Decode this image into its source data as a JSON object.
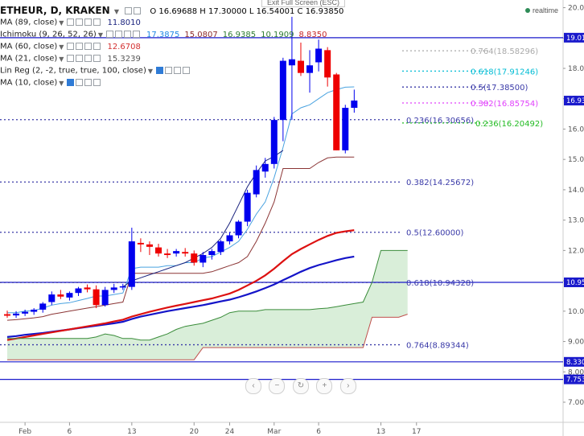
{
  "header": {
    "title": "ETHEUR, D, KRAKEN",
    "ohlc": "O 16.69688 H 17.30000 L 16.54001 C 16.93850",
    "exit_fullscreen": "Exit Full Screen (ESC)",
    "realtime": "realtime"
  },
  "indicators": [
    {
      "name": "MA (89, close)",
      "values": [
        {
          "v": "11.8010",
          "color": "#1a237e"
        }
      ]
    },
    {
      "name": "Ichimoku (9, 26, 52, 26)",
      "values": [
        {
          "v": "17.3875",
          "color": "#1e88e5"
        },
        {
          "v": "15.0807",
          "color": "#8d2a2a"
        },
        {
          "v": "16.9385",
          "color": "#2e7d32"
        },
        {
          "v": "10.1909",
          "color": "#2e7d32"
        },
        {
          "v": "8.8350",
          "color": "#c62828"
        }
      ]
    },
    {
      "name": "MA (60, close)",
      "values": [
        {
          "v": "12.6708",
          "color": "#d32f2f"
        }
      ]
    },
    {
      "name": "MA (21, close)",
      "values": [
        {
          "v": "15.3239",
          "color": "#555555"
        }
      ]
    },
    {
      "name": "Lin Reg (2, -2, true, true, 100, close)",
      "values": []
    },
    {
      "name": "MA (10, close)",
      "values": []
    }
  ],
  "colors": {
    "up": "#0000ee",
    "down": "#ee0000",
    "fib_line": "#3a3aa8",
    "cloud": "#d9eed9",
    "ma89": "#1414c8",
    "ma60": "#dd1111",
    "tenkan": "#4aa3e0",
    "kijun": "#8b3535",
    "chikou": "#1a237e",
    "lead_a": "#3a8c3a",
    "lead_b": "#c0504d"
  },
  "chart_data": {
    "type": "candlestick",
    "ylim": [
      7.0,
      20.2
    ],
    "x_ticks": [
      {
        "label": "Feb",
        "i": 2
      },
      {
        "label": "6",
        "i": 7
      },
      {
        "label": "13",
        "i": 14
      },
      {
        "label": "20",
        "i": 21
      },
      {
        "label": "24",
        "i": 25
      },
      {
        "label": "Mar",
        "i": 30
      },
      {
        "label": "6",
        "i": 35
      },
      {
        "label": "13",
        "i": 42
      },
      {
        "label": "17",
        "i": 46
      }
    ],
    "y_ticks": [
      "20.000",
      "19.000",
      "18.000",
      "17.000",
      "16.000",
      "15.000",
      "14.000",
      "13.000",
      "12.000",
      "11.000",
      "10.000",
      "9.000",
      "8.000",
      "7.000"
    ],
    "price_labels": [
      "19.011",
      "16.938",
      "10.950",
      "8.330",
      "7.753"
    ],
    "candles": [
      {
        "o": 9.9,
        "h": 10.02,
        "l": 9.78,
        "c": 9.85
      },
      {
        "o": 9.86,
        "h": 10.0,
        "l": 9.78,
        "c": 9.92
      },
      {
        "o": 9.92,
        "h": 10.05,
        "l": 9.84,
        "c": 9.98
      },
      {
        "o": 9.98,
        "h": 10.1,
        "l": 9.88,
        "c": 10.05
      },
      {
        "o": 10.05,
        "h": 10.3,
        "l": 9.95,
        "c": 10.25
      },
      {
        "o": 10.3,
        "h": 10.65,
        "l": 10.2,
        "c": 10.55
      },
      {
        "o": 10.55,
        "h": 10.7,
        "l": 10.4,
        "c": 10.48
      },
      {
        "o": 10.45,
        "h": 10.65,
        "l": 10.35,
        "c": 10.6
      },
      {
        "o": 10.6,
        "h": 10.8,
        "l": 10.5,
        "c": 10.75
      },
      {
        "o": 10.78,
        "h": 10.88,
        "l": 10.62,
        "c": 10.72
      },
      {
        "o": 10.72,
        "h": 10.85,
        "l": 10.1,
        "c": 10.2
      },
      {
        "o": 10.2,
        "h": 10.8,
        "l": 10.15,
        "c": 10.7
      },
      {
        "o": 10.7,
        "h": 10.9,
        "l": 10.6,
        "c": 10.78
      },
      {
        "o": 10.78,
        "h": 10.9,
        "l": 10.7,
        "c": 10.82
      },
      {
        "o": 10.8,
        "h": 12.75,
        "l": 10.7,
        "c": 12.3
      },
      {
        "o": 12.25,
        "h": 12.4,
        "l": 11.95,
        "c": 12.2
      },
      {
        "o": 12.2,
        "h": 12.3,
        "l": 11.85,
        "c": 12.12
      },
      {
        "o": 12.1,
        "h": 12.22,
        "l": 11.8,
        "c": 11.9
      },
      {
        "o": 11.9,
        "h": 12.05,
        "l": 11.75,
        "c": 11.85
      },
      {
        "o": 11.9,
        "h": 12.05,
        "l": 11.8,
        "c": 11.98
      },
      {
        "o": 11.95,
        "h": 12.08,
        "l": 11.8,
        "c": 11.9
      },
      {
        "o": 11.9,
        "h": 12.0,
        "l": 11.5,
        "c": 11.6
      },
      {
        "o": 11.6,
        "h": 11.95,
        "l": 11.45,
        "c": 11.85
      },
      {
        "o": 11.85,
        "h": 12.05,
        "l": 11.7,
        "c": 11.98
      },
      {
        "o": 11.95,
        "h": 12.35,
        "l": 11.85,
        "c": 12.3
      },
      {
        "o": 12.3,
        "h": 12.6,
        "l": 12.2,
        "c": 12.5
      },
      {
        "o": 12.5,
        "h": 13.0,
        "l": 12.4,
        "c": 12.95
      },
      {
        "o": 12.95,
        "h": 14.0,
        "l": 12.8,
        "c": 13.9
      },
      {
        "o": 13.85,
        "h": 14.8,
        "l": 13.75,
        "c": 14.65
      },
      {
        "o": 14.6,
        "h": 15.05,
        "l": 14.4,
        "c": 14.85
      },
      {
        "o": 14.85,
        "h": 16.4,
        "l": 14.7,
        "c": 16.3
      },
      {
        "o": 16.3,
        "h": 18.35,
        "l": 15.6,
        "c": 18.25
      },
      {
        "o": 18.1,
        "h": 19.7,
        "l": 16.3,
        "c": 18.3
      },
      {
        "o": 18.25,
        "h": 18.85,
        "l": 17.75,
        "c": 17.85
      },
      {
        "o": 17.85,
        "h": 18.6,
        "l": 17.2,
        "c": 18.1
      },
      {
        "o": 18.2,
        "h": 18.95,
        "l": 17.9,
        "c": 18.65
      },
      {
        "o": 18.6,
        "h": 18.7,
        "l": 17.4,
        "c": 17.7
      },
      {
        "o": 17.8,
        "h": 17.85,
        "l": 15.3,
        "c": 15.3
      },
      {
        "o": 15.3,
        "h": 16.8,
        "l": 15.2,
        "c": 16.7
      },
      {
        "o": 16.7,
        "h": 17.3,
        "l": 16.54,
        "c": 16.94
      }
    ],
    "series": [
      {
        "key": "ma89",
        "values": [
          9.15,
          9.18,
          9.22,
          9.25,
          9.28,
          9.32,
          9.36,
          9.4,
          9.44,
          9.48,
          9.52,
          9.56,
          9.6,
          9.65,
          9.74,
          9.82,
          9.88,
          9.94,
          10.0,
          10.05,
          10.1,
          10.15,
          10.2,
          10.26,
          10.32,
          10.38,
          10.46,
          10.55,
          10.65,
          10.76,
          10.88,
          11.02,
          11.16,
          11.3,
          11.42,
          11.52,
          11.6,
          11.68,
          11.75,
          11.8
        ]
      },
      {
        "key": "ma60",
        "values": [
          9.05,
          9.1,
          9.15,
          9.2,
          9.25,
          9.3,
          9.35,
          9.4,
          9.45,
          9.5,
          9.55,
          9.6,
          9.66,
          9.72,
          9.82,
          9.9,
          9.98,
          10.05,
          10.12,
          10.18,
          10.24,
          10.3,
          10.36,
          10.42,
          10.5,
          10.58,
          10.7,
          10.85,
          11.0,
          11.18,
          11.4,
          11.65,
          11.88,
          12.05,
          12.2,
          12.35,
          12.48,
          12.58,
          12.63,
          12.67
        ]
      },
      {
        "key": "tenkan",
        "values": [
          9.95,
          9.95,
          10.0,
          10.02,
          10.1,
          10.2,
          10.25,
          10.28,
          10.35,
          10.42,
          10.5,
          10.5,
          10.55,
          10.6,
          11.4,
          11.45,
          11.45,
          11.45,
          11.5,
          11.5,
          11.6,
          11.6,
          11.75,
          11.8,
          11.95,
          12.1,
          12.3,
          12.7,
          13.2,
          13.6,
          14.4,
          15.4,
          16.5,
          16.7,
          16.8,
          17.0,
          17.2,
          17.3,
          17.38,
          17.39
        ]
      },
      {
        "key": "kijun",
        "values": [
          9.7,
          9.72,
          9.75,
          9.78,
          9.82,
          9.9,
          9.95,
          10.0,
          10.05,
          10.1,
          10.15,
          10.2,
          10.25,
          10.3,
          11.25,
          11.25,
          11.25,
          11.25,
          11.25,
          11.25,
          11.25,
          11.25,
          11.25,
          11.3,
          11.4,
          11.5,
          11.6,
          11.8,
          12.3,
          12.9,
          13.6,
          14.7,
          14.7,
          14.7,
          14.7,
          14.9,
          15.05,
          15.08,
          15.08,
          15.08
        ]
      },
      {
        "key": "chikou",
        "values": [
          null,
          null,
          null,
          null,
          null,
          null,
          null,
          null,
          null,
          null,
          null,
          null,
          null,
          10.8,
          11.0,
          11.1,
          11.2,
          11.3,
          11.4,
          11.5,
          11.6,
          11.75,
          11.9,
          12.1,
          12.4,
          12.9,
          13.5,
          14.1,
          14.55,
          14.95,
          15.1,
          15.3
        ]
      },
      {
        "key": "lead_a",
        "values": [
          9.1,
          9.1,
          9.1,
          9.1,
          9.1,
          9.1,
          9.1,
          9.1,
          9.1,
          9.1,
          9.15,
          9.25,
          9.2,
          9.1,
          9.1,
          9.05,
          9.05,
          9.15,
          9.25,
          9.4,
          9.5,
          9.55,
          9.6,
          9.7,
          9.8,
          9.95,
          10.0,
          10.0,
          10.0,
          10.05,
          10.05,
          10.05,
          10.05,
          10.05,
          10.05,
          10.08,
          10.1,
          10.15,
          10.2,
          10.25,
          10.3,
          10.95,
          12.0,
          12.0,
          12.0,
          12.0
        ]
      },
      {
        "key": "lead_b",
        "values": [
          8.4,
          8.4,
          8.4,
          8.4,
          8.4,
          8.4,
          8.4,
          8.4,
          8.4,
          8.4,
          8.4,
          8.4,
          8.4,
          8.4,
          8.4,
          8.4,
          8.4,
          8.4,
          8.4,
          8.4,
          8.4,
          8.4,
          8.8,
          8.8,
          8.8,
          8.8,
          8.8,
          8.8,
          8.8,
          8.8,
          8.8,
          8.8,
          8.8,
          8.8,
          8.8,
          8.8,
          8.8,
          8.8,
          8.8,
          8.8,
          8.8,
          9.8,
          9.8,
          9.8,
          9.8,
          9.9
        ]
      }
    ],
    "fib_levels": [
      {
        "label": "0.764(18.58296)",
        "value": 18.58,
        "color": "#aaaaaa"
      },
      {
        "label": "0.618(17.91246)",
        "value": 17.91,
        "color": "#00bcd4"
      },
      {
        "label": "0.5(17.38500)",
        "value": 17.385,
        "color": "#3a3aa8"
      },
      {
        "label": "0.382(16.85754)",
        "value": 16.86,
        "color": "#e040fb"
      },
      {
        "label": "0.236(16.30656)",
        "value": 16.31,
        "color": "#3a3aa8"
      },
      {
        "label": "0.236(16.20492)",
        "value": 16.2,
        "color": "#22bb22"
      },
      {
        "label": "0.382(14.25672)",
        "value": 14.257,
        "color": "#3a3aa8"
      },
      {
        "label": "0.5(12.60000)",
        "value": 12.6,
        "color": "#3a3aa8"
      },
      {
        "label": "0.618(10.94328)",
        "value": 10.943,
        "color": "#3a3aa8"
      },
      {
        "label": "0.764(8.89344)",
        "value": 8.893,
        "color": "#3a3aa8"
      }
    ],
    "hlines": [
      19.01,
      10.95,
      8.33,
      7.753
    ]
  }
}
